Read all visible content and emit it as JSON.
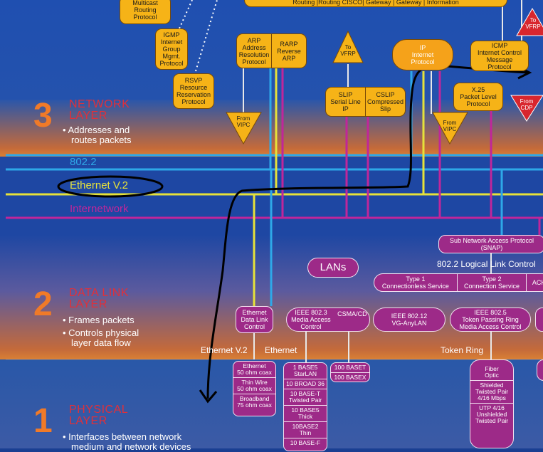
{
  "colors": {
    "accent_orange": "#f07a28",
    "layer_title_red": "#e0303a",
    "box_yellow": "#f6b317",
    "box_purple": "#9d2a88",
    "line_cyan": "#2ea8e8",
    "line_yellow": "#e6e23a",
    "line_magenta": "#c0269a"
  },
  "top": {
    "multicast": "Multicast\nRouting\nProtocol",
    "igmp": "IGMP\nInternet\nGroup\nMgmt.\nProtocol",
    "rsvp": "RSVP\nResource\nReservation\nProtocol",
    "routing_row": "Routing      |Routing CISCO| Gateway |  Gateway |  Information",
    "arp": "ARP\nAddress\nResolution\nProtocol",
    "rarp": "RARP\nReverse\nARP",
    "to_vfrp_1": "To\nVFRP",
    "ip": "IP\nInternet\nProtocol",
    "icmp": "ICMP\nInternet Control\nMessage\nProtocol",
    "to_vfrp_2": "To\nVFRP",
    "slip": "SLIP\nSerial Line\nIP",
    "cslip": "CSLIP\nCompressed\nSlip",
    "x25": "X.25\nPacket Level\nProtocol",
    "from_cdp": "From\nCDP",
    "from_vipc_1": "From\nVIPC",
    "from_vipc_2": "From\nVIPC"
  },
  "layers": {
    "network": {
      "number": "3",
      "title": "NETWORK\nLAYER",
      "bullet1_a": "Addresses and",
      "bullet1_b": "routes packets"
    },
    "datalink": {
      "number": "2",
      "title": "DATA LINK\nLAYER",
      "bullet1": "Frames packets",
      "bullet2_a": "Controls physical",
      "bullet2_b": "layer data flow"
    },
    "physical": {
      "number": "1",
      "title": "PHYSICAL\nLAYER",
      "bullet1_a": "Interfaces between network",
      "bullet1_b": "medium and network devices"
    }
  },
  "buses": {
    "b8022": "802.2",
    "ethernet_v2": "Ethernet V.2",
    "internetwork": "Internetwork"
  },
  "datalink": {
    "snap": "Sub Network Access Protocol\n(SNAP)",
    "llc_label": "802.2 Logical  Link Control",
    "type1": "Type 1\nConnectionless Service",
    "type2": "Type 2\nConnection Service",
    "ack": "ACK",
    "lans": "LANs",
    "eth_dlc": "Ethernet\nData Link\nControl",
    "ieee8023": "IEEE 802.3\nMedia Access Control",
    "csmacd": "CSMA/CD",
    "ieee80212": "IEEE 802.12\nVG-AnyLAN",
    "ieee8025": "IEEE 802.5\nToken Passing Ring\nMedia Access Control",
    "lbl_ethv2": "Ethernet V.2",
    "lbl_ethernet": "Ethernet",
    "lbl_token": "Token Ring"
  },
  "physical": {
    "col_eth": [
      "Ethernet\n50 ohm coax",
      "Thin Wire\n50 ohm coax",
      "Broadband\n75 ohm coax"
    ],
    "col_8023": [
      "1 BASE5\nStarLAN",
      "10 BROAD 36",
      "10 BASE-T\nTwisted Pair",
      "10 BASE5\nThick",
      "10BASE2\nThin",
      "10 BASE-F"
    ],
    "col_100": [
      "100 BASET",
      "100 BASEX"
    ],
    "col_token": [
      "Fiber\nOptic",
      "Shielded\nTwisted Pair\n4/16 Mbps",
      "UTP 4/16\nUnshielded\nTwisted Pair"
    ]
  }
}
